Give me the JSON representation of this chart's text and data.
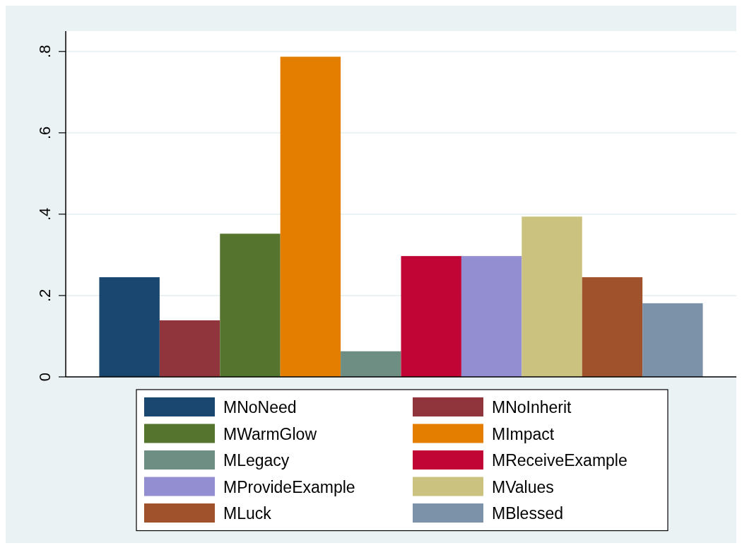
{
  "chart_data": {
    "type": "bar",
    "categories": [
      null
    ],
    "series": [
      {
        "name": "MNoNeed",
        "color": "#1a476f",
        "values": [
          0.245
        ]
      },
      {
        "name": "MNoInherit",
        "color": "#90353b",
        "values": [
          0.139
        ]
      },
      {
        "name": "MWarmGlow",
        "color": "#55752f",
        "values": [
          0.352
        ]
      },
      {
        "name": "MImpact",
        "color": "#e37e00",
        "values": [
          0.787
        ]
      },
      {
        "name": "MLegacy",
        "color": "#6e8e84",
        "values": [
          0.063
        ]
      },
      {
        "name": "MReceiveExample",
        "color": "#c10534",
        "values": [
          0.297
        ]
      },
      {
        "name": "MProvideExample",
        "color": "#938dd2",
        "values": [
          0.297
        ]
      },
      {
        "name": "MValues",
        "color": "#cac27e",
        "values": [
          0.394
        ]
      },
      {
        "name": "MLuck",
        "color": "#a0522d",
        "values": [
          0.245
        ]
      },
      {
        "name": "MBlessed",
        "color": "#7b92a8",
        "values": [
          0.181
        ]
      }
    ],
    "ylim": [
      0,
      0.85
    ],
    "yticks": [
      {
        "value": 0,
        "label": "0"
      },
      {
        "value": 0.2,
        "label": ".2"
      },
      {
        "value": 0.4,
        "label": ".4"
      },
      {
        "value": 0.6,
        "label": ".6"
      },
      {
        "value": 0.8,
        "label": ".8"
      }
    ],
    "grid": "y",
    "legend": "bottom"
  }
}
